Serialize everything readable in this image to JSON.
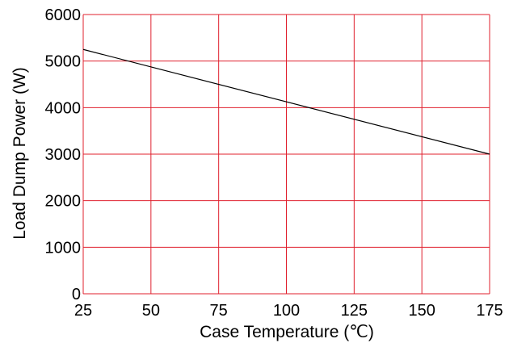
{
  "chart_data": {
    "type": "line",
    "xlabel": "Case Temperature (℃)",
    "ylabel": "Load Dump Power (W)",
    "xlim": [
      25,
      175
    ],
    "ylim": [
      0,
      6000
    ],
    "x_ticks": [
      25,
      50,
      75,
      100,
      125,
      150,
      175
    ],
    "y_ticks": [
      0,
      1000,
      2000,
      3000,
      4000,
      5000,
      6000
    ],
    "grid": true,
    "legend": "none",
    "series": [
      {
        "x": [
          25,
          175
        ],
        "y": [
          5250,
          3000
        ],
        "color": "#000000"
      }
    ],
    "colors": {
      "grid": "#e0202e",
      "line": "#000000"
    }
  }
}
